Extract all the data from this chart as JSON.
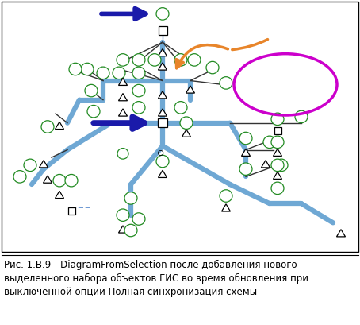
{
  "caption": "Рис. 1.B.9 - DiagramFromSelection после добавления нового\nвыделенного набора объектов ГИС во время обновления при\nвыключенной опции Полная синхронизация схемы",
  "bg_color": "#ffffff",
  "caption_fontsize": 8.5,
  "node_circle_edgecolor": "#228B22",
  "node_circle_fill": "#ffffff",
  "node_edge_black": "#000000",
  "line_blue_color": "#6fa8d4",
  "line_black_color": "#333333",
  "arrow_dark_blue": "#1a1aaa",
  "arrow_orange": "#e8852a",
  "ellipse_purple": "#cc00cc",
  "dashed_blue": "#5588cc"
}
